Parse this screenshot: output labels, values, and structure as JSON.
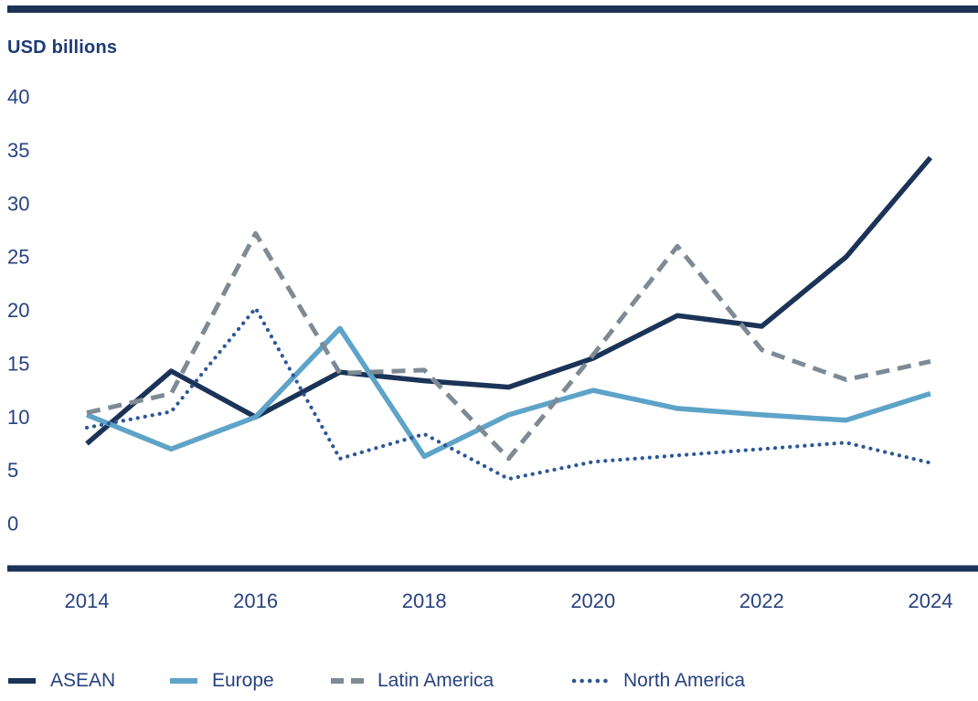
{
  "page": {
    "axis_title": "USD billions"
  },
  "chart_data": {
    "type": "line",
    "title": "USD billions",
    "ylabel": "USD billions",
    "xlabel": "",
    "x": [
      2014,
      2015,
      2016,
      2017,
      2018,
      2019,
      2020,
      2021,
      2022,
      2023,
      2024
    ],
    "xticks": [
      2014,
      2016,
      2018,
      2020,
      2022,
      2024
    ],
    "yticks": [
      40,
      35,
      30,
      25,
      20,
      15,
      10,
      5,
      0
    ],
    "ylim": [
      0,
      40
    ],
    "grid": false,
    "legend_position": "bottom",
    "series": [
      {
        "name": "ASEAN",
        "style": "solid",
        "color": "#1b3357",
        "values": [
          7.5,
          14.3,
          10.0,
          14.2,
          13.4,
          12.8,
          15.5,
          19.5,
          18.5,
          25.0,
          34.3
        ]
      },
      {
        "name": "Europe",
        "style": "solid",
        "color": "#5ea3c8",
        "values": [
          10.2,
          7.0,
          10.0,
          18.3,
          6.3,
          10.2,
          12.5,
          10.8,
          10.2,
          9.7,
          12.2
        ]
      },
      {
        "name": "Latin America",
        "style": "dashed",
        "color": "#7e8a94",
        "values": [
          10.4,
          12.2,
          27.2,
          14.1,
          14.4,
          6.1,
          15.8,
          26.0,
          16.3,
          13.5,
          15.2
        ]
      },
      {
        "name": "North America",
        "style": "dotted",
        "color": "#2d5795",
        "values": [
          9.0,
          10.5,
          20.2,
          6.1,
          8.4,
          4.2,
          5.8,
          6.4,
          7.0,
          7.6,
          5.7
        ]
      }
    ],
    "colors": {
      "tick_text": "#28427f",
      "axis_line": "#1b3357",
      "top_rule": "#1b3357"
    }
  }
}
